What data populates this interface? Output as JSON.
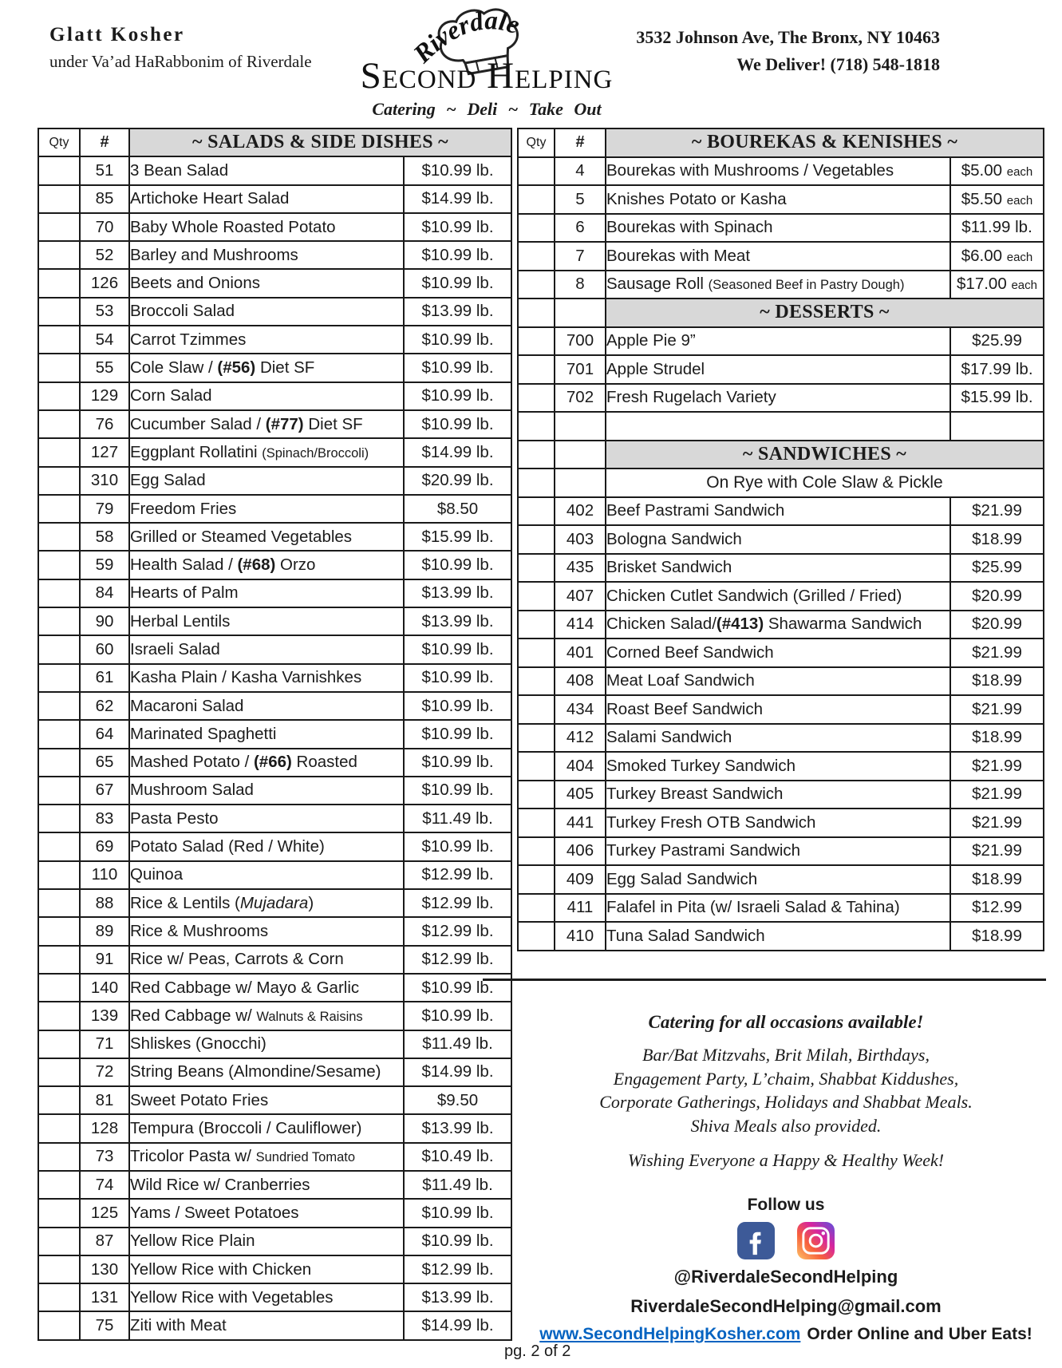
{
  "header": {
    "kosher_line1": "Glatt Kosher",
    "kosher_line2": "under Va’ad HaRabbonim of Riverdale",
    "address_line1": "3532 Johnson Ave, The Bronx, NY 10463",
    "address_line2": "We Deliver! (718) 548-1818",
    "logo": {
      "arc_text": "Riverdale",
      "name": "Second Helping",
      "tagline": "Catering  ~  Deli  ~  Take Out",
      "hat_icon": "chef-hat-icon"
    }
  },
  "left_table": {
    "qty_header": "Qty",
    "num_header": "#",
    "title": "~ SALADS & SIDE DISHES ~",
    "items": [
      {
        "qty": "",
        "num": "51",
        "name": "3 Bean Salad",
        "price": "$10.99 lb."
      },
      {
        "qty": "",
        "num": "85",
        "name": "Artichoke Heart Salad",
        "price": "$14.99 lb."
      },
      {
        "qty": "",
        "num": "70",
        "name": "Baby Whole Roasted Potato",
        "price": "$10.99 lb."
      },
      {
        "qty": "",
        "num": "52",
        "name": "Barley and Mushrooms",
        "price": "$10.99 lb."
      },
      {
        "qty": "",
        "num": "126",
        "name": "Beets and Onions",
        "price": "$10.99 lb."
      },
      {
        "qty": "",
        "num": "53",
        "name": "Broccoli Salad",
        "price": "$13.99 lb."
      },
      {
        "qty": "",
        "num": "54",
        "name": "Carrot Tzimmes",
        "price": "$10.99 lb."
      },
      {
        "qty": "",
        "num": "55",
        "name": "Cole Slaw / **(#56)** Diet SF",
        "price": "$10.99 lb."
      },
      {
        "qty": "",
        "num": "129",
        "name": "Corn Salad",
        "price": "$10.99 lb."
      },
      {
        "qty": "",
        "num": "76",
        "name": "Cucumber Salad / **(#77)** Diet SF",
        "price": "$10.99 lb."
      },
      {
        "qty": "",
        "num": "127",
        "name": "Eggplant Rollatini {{(Spinach/Broccoli)}}",
        "price": "$14.99 lb."
      },
      {
        "qty": "",
        "num": "310",
        "name": "Egg Salad",
        "price": "$20.99 lb."
      },
      {
        "qty": "",
        "num": "79",
        "name": "Freedom Fries",
        "price": "$8.50"
      },
      {
        "qty": "",
        "num": "58",
        "name": "Grilled or Steamed Vegetables",
        "price": "$15.99 lb."
      },
      {
        "qty": "",
        "num": "59",
        "name": "Health Salad / **(#68)** Orzo",
        "price": "$10.99 lb."
      },
      {
        "qty": "",
        "num": "84",
        "name": "Hearts of Palm",
        "price": "$13.99 lb."
      },
      {
        "qty": "",
        "num": "90",
        "name": "Herbal Lentils",
        "price": "$13.99 lb."
      },
      {
        "qty": "",
        "num": "60",
        "name": "Israeli Salad",
        "price": "$10.99 lb."
      },
      {
        "qty": "",
        "num": "61",
        "name": "Kasha Plain / Kasha Varnishkes",
        "price": "$10.99 lb."
      },
      {
        "qty": "",
        "num": "62",
        "name": "Macaroni Salad",
        "price": "$10.99 lb."
      },
      {
        "qty": "",
        "num": "64",
        "name": "Marinated Spaghetti",
        "price": "$10.99 lb."
      },
      {
        "qty": "",
        "num": "65",
        "name": "Mashed Potato / **(#66)** Roasted",
        "price": "$10.99 lb."
      },
      {
        "qty": "",
        "num": "67",
        "name": "Mushroom Salad",
        "price": "$10.99 lb."
      },
      {
        "qty": "",
        "num": "83",
        "name": "Pasta Pesto",
        "price": "$11.49 lb."
      },
      {
        "qty": "",
        "num": "69",
        "name": "Potato Salad (Red / White)",
        "price": "$10.99 lb."
      },
      {
        "qty": "",
        "num": "110",
        "name": "Quinoa",
        "price": "$12.99 lb."
      },
      {
        "qty": "",
        "num": "88",
        "name": "Rice & Lentils (*Mujadara*)",
        "price": "$12.99 lb."
      },
      {
        "qty": "",
        "num": "89",
        "name": "Rice & Mushrooms",
        "price": "$12.99 lb."
      },
      {
        "qty": "",
        "num": "91",
        "name": "Rice w/ Peas, Carrots & Corn",
        "price": "$12.99 lb."
      },
      {
        "qty": "",
        "num": "140",
        "name": "Red Cabbage w/ Mayo & Garlic",
        "price": "$10.99 lb."
      },
      {
        "qty": "",
        "num": "139",
        "name": "Red Cabbage w/ {{Walnuts & Raisins}}",
        "price": "$10.99 lb."
      },
      {
        "qty": "",
        "num": "71",
        "name": "Shliskes (Gnocchi)",
        "price": "$11.49 lb."
      },
      {
        "qty": "",
        "num": "72",
        "name": "String Beans (Almondine/Sesame)",
        "price": "$14.99 lb."
      },
      {
        "qty": "",
        "num": "81",
        "name": "Sweet Potato Fries",
        "price": "$9.50"
      },
      {
        "qty": "",
        "num": "128",
        "name": "Tempura (Broccoli / Cauliflower)",
        "price": "$13.99 lb."
      },
      {
        "qty": "",
        "num": "73",
        "name": "Tricolor Pasta w/ {{Sundried Tomato}}",
        "price": "$10.49 lb."
      },
      {
        "qty": "",
        "num": "74",
        "name": "Wild Rice w/ Cranberries",
        "price": "$11.49 lb."
      },
      {
        "qty": "",
        "num": "125",
        "name": "Yams / Sweet Potatoes",
        "price": "$10.99 lb."
      },
      {
        "qty": "",
        "num": "87",
        "name": "Yellow Rice Plain",
        "price": "$10.99 lb."
      },
      {
        "qty": "",
        "num": "130",
        "name": "Yellow Rice with Chicken",
        "price": "$12.99 lb."
      },
      {
        "qty": "",
        "num": "131",
        "name": "Yellow Rice with Vegetables",
        "price": "$13.99 lb."
      },
      {
        "qty": "",
        "num": "75",
        "name": "Ziti with Meat",
        "price": "$14.99 lb."
      }
    ]
  },
  "right_table": {
    "qty_header": "Qty",
    "num_header": "#",
    "title": "~ BOUREKAS & KENISHES ~",
    "rows": [
      {
        "type": "item",
        "qty": "",
        "num": "4",
        "name": "Bourekas with Mushrooms / Vegetables",
        "price": "$5.00 {{each}}"
      },
      {
        "type": "item",
        "qty": "",
        "num": "5",
        "name": "Knishes Potato or Kasha",
        "price": "$5.50 {{each}}"
      },
      {
        "type": "item",
        "qty": "",
        "num": "6",
        "name": "Bourekas with Spinach",
        "price": "$11.99 lb."
      },
      {
        "type": "item",
        "qty": "",
        "num": "7",
        "name": "Bourekas with Meat",
        "price": "$6.00 {{each}}"
      },
      {
        "type": "item",
        "qty": "",
        "num": "8",
        "name": "Sausage Roll {{(Seasoned Beef in Pastry Dough)}}",
        "price": "$17.00 {{each}}"
      },
      {
        "type": "section",
        "title": "~ DESSERTS ~"
      },
      {
        "type": "item",
        "qty": "",
        "num": "700",
        "name": "Apple Pie 9”",
        "price": "$25.99"
      },
      {
        "type": "item",
        "qty": "",
        "num": "701",
        "name": "Apple Strudel",
        "price": "$17.99 lb."
      },
      {
        "type": "item",
        "qty": "",
        "num": "702",
        "name": "Fresh Rugelach Variety",
        "price": "$15.99 lb."
      },
      {
        "type": "spacer"
      },
      {
        "type": "section",
        "title": "~ SANDWICHES ~"
      },
      {
        "type": "subtitle",
        "text": "On Rye with Cole Slaw & Pickle"
      },
      {
        "type": "item",
        "qty": "",
        "num": "402",
        "name": "Beef Pastrami Sandwich",
        "price": "$21.99"
      },
      {
        "type": "item",
        "qty": "",
        "num": "403",
        "name": "Bologna Sandwich",
        "price": "$18.99"
      },
      {
        "type": "item",
        "qty": "",
        "num": "435",
        "name": "Brisket Sandwich",
        "price": "$25.99"
      },
      {
        "type": "item",
        "qty": "",
        "num": "407",
        "name": "Chicken Cutlet Sandwich (Grilled / Fried)",
        "price": "$20.99"
      },
      {
        "type": "item",
        "qty": "",
        "num": "414",
        "name": "Chicken Salad/**(#413)** Shawarma Sandwich",
        "price": "$20.99"
      },
      {
        "type": "item",
        "qty": "",
        "num": "401",
        "name": "Corned Beef Sandwich",
        "price": "$21.99"
      },
      {
        "type": "item",
        "qty": "",
        "num": "408",
        "name": "Meat Loaf Sandwich",
        "price": "$18.99"
      },
      {
        "type": "item",
        "qty": "",
        "num": "434",
        "name": "Roast Beef Sandwich",
        "price": "$21.99"
      },
      {
        "type": "item",
        "qty": "",
        "num": "412",
        "name": "Salami Sandwich",
        "price": "$18.99"
      },
      {
        "type": "item",
        "qty": "",
        "num": "404",
        "name": "Smoked Turkey Sandwich",
        "price": "$21.99"
      },
      {
        "type": "item",
        "qty": "",
        "num": "405",
        "name": "Turkey Breast Sandwich",
        "price": "$21.99"
      },
      {
        "type": "item",
        "qty": "",
        "num": "441",
        "name": "Turkey Fresh OTB Sandwich",
        "price": "$21.99"
      },
      {
        "type": "item",
        "qty": "",
        "num": "406",
        "name": "Turkey Pastrami Sandwich",
        "price": "$21.99"
      },
      {
        "type": "item",
        "qty": "",
        "num": "409",
        "name": "Egg Salad Sandwich",
        "price": "$18.99"
      },
      {
        "type": "item",
        "qty": "",
        "num": "411",
        "name": "Falafel in Pita (w/ Israeli Salad & Tahina)",
        "price": "$12.99"
      },
      {
        "type": "item",
        "qty": "",
        "num": "410",
        "name": "Tuna Salad Sandwich",
        "price": "$18.99"
      }
    ]
  },
  "footer": {
    "catering_title": "Catering for all occasions available!",
    "catering_lines": [
      "Bar/Bat Mitzvahs, Brit Milah, Birthdays,",
      "Engagement Party, L’chaim, Shabbat Kiddushes,",
      "Corporate Gatherings, Holidays and Shabbat Meals.",
      "Shiva Meals also provided."
    ],
    "wishing": "Wishing Everyone a Happy & Healthy Week!",
    "follow_label": "Follow us",
    "facebook_icon": "facebook-icon",
    "instagram_icon": "instagram-icon",
    "social_handle": "@RiverdaleSecondHelping",
    "email": "RiverdaleSecondHelping@gmail.com",
    "website": "www.SecondHelpingKosher.com",
    "website_suffix": "Order Online and Uber Eats!",
    "page_number": "pg. 2 of 2"
  },
  "colors": {
    "band_gray": "#d8d8d8",
    "link_blue": "#0563c1",
    "facebook_blue": "#3d5a98",
    "border_black": "#1a1a1a"
  }
}
